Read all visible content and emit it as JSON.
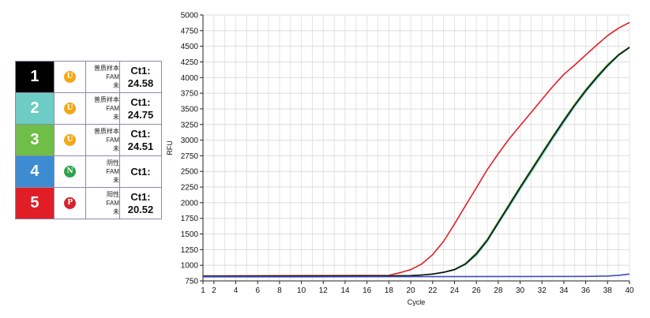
{
  "samples": [
    {
      "number": "1",
      "color": "#000000",
      "badge": "U",
      "badge_color": "#f3a817",
      "desc": [
        "普质样本",
        "FAM",
        "未"
      ],
      "ct_label": "Ct1:",
      "ct_value": "24.58"
    },
    {
      "number": "2",
      "color": "#6dcdc4",
      "badge": "U",
      "badge_color": "#f3a817",
      "desc": [
        "普质样本",
        "FAM",
        "未"
      ],
      "ct_label": "Ct1:",
      "ct_value": "24.75"
    },
    {
      "number": "3",
      "color": "#6fbe47",
      "badge": "U",
      "badge_color": "#f3a817",
      "desc": [
        "普质样本",
        "FAM",
        "未"
      ],
      "ct_label": "Ct1:",
      "ct_value": "24.51"
    },
    {
      "number": "4",
      "color": "#3d8bd1",
      "badge": "N",
      "badge_color": "#2aa34a",
      "desc": [
        "阴性",
        "FAM",
        "未"
      ],
      "ct_label": "Ct1:",
      "ct_value": ""
    },
    {
      "number": "5",
      "color": "#e11e26",
      "badge": "P",
      "badge_color": "#d6232b",
      "desc": [
        "阳性",
        "FAM",
        "未"
      ],
      "ct_label": "Ct1:",
      "ct_value": "20.52"
    }
  ],
  "chart_data": {
    "type": "line",
    "xlabel": "Cycle",
    "ylabel": "RFU",
    "xlim": [
      1,
      40
    ],
    "ylim": [
      750,
      5000
    ],
    "x_ticks": [
      1,
      2,
      4,
      6,
      8,
      10,
      12,
      14,
      16,
      18,
      20,
      22,
      24,
      26,
      28,
      30,
      32,
      34,
      36,
      38,
      40
    ],
    "y_ticks": [
      750,
      1000,
      1250,
      1500,
      1750,
      2000,
      2250,
      2500,
      2750,
      3000,
      3250,
      3500,
      3750,
      4000,
      4250,
      4500,
      4750,
      5000
    ],
    "grid": true,
    "series": [
      {
        "color": "#e11e26",
        "x": [
          1,
          10,
          18,
          19,
          20,
          21,
          22,
          23,
          24,
          25,
          26,
          27,
          28,
          29,
          30,
          31,
          32,
          33,
          34,
          35,
          36,
          37,
          38,
          39,
          40
        ],
        "y": [
          830,
          835,
          840,
          880,
          930,
          1020,
          1170,
          1380,
          1660,
          1950,
          2240,
          2530,
          2780,
          3020,
          3230,
          3440,
          3650,
          3860,
          4050,
          4200,
          4360,
          4520,
          4670,
          4790,
          4880
        ]
      },
      {
        "color": "#6dcdc4",
        "x": [
          1,
          10,
          18,
          20,
          21,
          22,
          23,
          24,
          25,
          26,
          27,
          28,
          29,
          30,
          31,
          32,
          33,
          34,
          35,
          36,
          37,
          38,
          39,
          40
        ],
        "y": [
          825,
          828,
          830,
          835,
          845,
          860,
          885,
          925,
          1010,
          1160,
          1380,
          1660,
          1930,
          2210,
          2480,
          2750,
          3020,
          3280,
          3540,
          3770,
          3980,
          4180,
          4350,
          4480
        ]
      },
      {
        "color": "#6fbe47",
        "x": [
          1,
          10,
          18,
          20,
          21,
          22,
          23,
          24,
          25,
          26,
          27,
          28,
          29,
          30,
          31,
          32,
          33,
          34,
          35,
          36,
          37,
          38,
          39,
          40
        ],
        "y": [
          825,
          828,
          830,
          835,
          845,
          860,
          890,
          935,
          1030,
          1200,
          1420,
          1700,
          1980,
          2260,
          2530,
          2800,
          3070,
          3330,
          3580,
          3810,
          4020,
          4210,
          4370,
          4490
        ]
      },
      {
        "color": "#111111",
        "x": [
          1,
          10,
          18,
          20,
          21,
          22,
          23,
          24,
          25,
          26,
          27,
          28,
          29,
          30,
          31,
          32,
          33,
          34,
          35,
          36,
          37,
          38,
          39,
          40
        ],
        "y": [
          825,
          828,
          830,
          835,
          845,
          860,
          888,
          930,
          1020,
          1180,
          1400,
          1680,
          1960,
          2240,
          2510,
          2780,
          3050,
          3310,
          3560,
          3790,
          4000,
          4190,
          4360,
          4480
        ]
      },
      {
        "color": "#3d4bc1",
        "x": [
          1,
          10,
          20,
          30,
          36,
          38,
          39,
          40
        ],
        "y": [
          815,
          815,
          818,
          820,
          822,
          828,
          840,
          860
        ]
      }
    ]
  }
}
